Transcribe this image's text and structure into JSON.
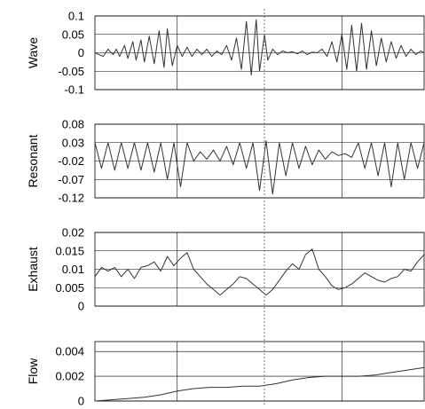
{
  "chart_data": [
    {
      "type": "line",
      "ylabel": "Wave",
      "ylim": [
        -0.1,
        0.1
      ],
      "yticks": [
        0.1,
        0.05,
        0,
        -0.05,
        -0.1
      ],
      "ytick_labels": [
        "0.1",
        "0.05",
        "0",
        "-0.05",
        "-0.1"
      ],
      "series": [
        {
          "x": [
            0,
            2.5,
            4,
            5.5,
            6.5,
            7.5,
            9,
            10,
            11.5,
            12.5,
            14,
            15,
            16.5,
            18,
            19.5,
            21,
            22,
            23.5,
            25,
            26.5,
            28,
            29.5,
            31,
            32.5,
            34,
            35.5,
            37,
            38.5,
            40,
            41.5,
            43,
            44.5,
            46,
            47.5,
            49,
            50,
            51.5,
            52.5,
            54,
            55.5,
            57,
            58.5,
            60,
            61.5,
            63,
            64.5,
            66,
            67.5,
            69,
            70.5,
            72,
            73.5,
            75,
            76.5,
            78,
            79.5,
            81,
            82.5,
            84,
            85.5,
            87,
            88.5,
            90,
            91.5,
            93,
            94.5,
            96,
            97.5,
            99,
            100
          ],
          "y": [
            0.0,
            -0.01,
            0.01,
            -0.005,
            0.01,
            -0.01,
            0.02,
            -0.015,
            0.03,
            -0.02,
            0.035,
            -0.025,
            0.045,
            -0.03,
            0.06,
            -0.04,
            0.065,
            -0.035,
            0.02,
            -0.01,
            0.015,
            -0.01,
            0.01,
            -0.005,
            0.01,
            -0.01,
            0.005,
            -0.005,
            0.02,
            -0.02,
            0.04,
            -0.045,
            0.085,
            -0.06,
            0.09,
            -0.05,
            0.05,
            -0.02,
            0.01,
            -0.005,
            0.005,
            0.0,
            0.003,
            -0.003,
            0.005,
            -0.005,
            0.002,
            0.0,
            0.01,
            -0.01,
            0.03,
            -0.025,
            0.05,
            -0.045,
            0.075,
            -0.05,
            0.08,
            -0.045,
            0.06,
            -0.035,
            0.04,
            -0.025,
            0.03,
            -0.015,
            0.02,
            -0.01,
            0.01,
            -0.005,
            0.005,
            0.0
          ]
        }
      ]
    },
    {
      "type": "line",
      "ylabel": "Resonant",
      "ylim": [
        -0.12,
        0.08
      ],
      "yticks": [
        0.08,
        0.03,
        -0.02,
        -0.07,
        -0.12
      ],
      "ytick_labels": [
        "0.08",
        "0.03",
        "-0.02",
        "-0.07",
        "-0.12"
      ],
      "series": [
        {
          "x": [
            0,
            2,
            4,
            6,
            8,
            10,
            12,
            14,
            16,
            18,
            20,
            22,
            24,
            26,
            28,
            30,
            32,
            34,
            36,
            38,
            40,
            42,
            44,
            46,
            48,
            50,
            52,
            54,
            56,
            58,
            60,
            62,
            64,
            66,
            68,
            70,
            72,
            74,
            76,
            78,
            80,
            82,
            84,
            86,
            88,
            90,
            92,
            94,
            96,
            98,
            100
          ],
          "y": [
            0.03,
            -0.04,
            0.03,
            -0.045,
            0.03,
            -0.04,
            0.03,
            -0.045,
            0.03,
            -0.05,
            0.03,
            -0.07,
            0.03,
            -0.09,
            0.03,
            -0.02,
            0.005,
            -0.015,
            0.01,
            -0.02,
            0.02,
            -0.03,
            0.03,
            -0.04,
            0.03,
            -0.1,
            0.035,
            -0.11,
            0.03,
            -0.06,
            0.03,
            -0.04,
            0.02,
            -0.03,
            0.01,
            -0.015,
            0.005,
            -0.005,
            0.0,
            -0.01,
            0.03,
            -0.04,
            0.03,
            -0.06,
            0.03,
            -0.09,
            0.03,
            -0.07,
            0.03,
            -0.04,
            0.03
          ]
        }
      ]
    },
    {
      "type": "line",
      "ylabel": "Exhaust",
      "ylim": [
        0,
        0.02
      ],
      "yticks": [
        0.02,
        0.015,
        0.01,
        0.005,
        0
      ],
      "ytick_labels": [
        "0.02",
        "0.015",
        "0.01",
        "0.005",
        "0"
      ],
      "series": [
        {
          "x": [
            0,
            2,
            4,
            6,
            8,
            10,
            12,
            14,
            16,
            18,
            20,
            22,
            24,
            26,
            28,
            30,
            32,
            34,
            36,
            38,
            40,
            42,
            44,
            46,
            48,
            50,
            52,
            54,
            56,
            58,
            60,
            62,
            64,
            66,
            68,
            70,
            72,
            74,
            76,
            78,
            80,
            82,
            84,
            86,
            88,
            90,
            92,
            94,
            96,
            98,
            100
          ],
          "y": [
            0.008,
            0.0105,
            0.0095,
            0.0105,
            0.008,
            0.01,
            0.0075,
            0.0105,
            0.011,
            0.012,
            0.0095,
            0.0135,
            0.011,
            0.013,
            0.0145,
            0.01,
            0.008,
            0.006,
            0.0045,
            0.003,
            0.0045,
            0.006,
            0.008,
            0.0075,
            0.006,
            0.0045,
            0.003,
            0.0045,
            0.007,
            0.0095,
            0.0115,
            0.01,
            0.014,
            0.0155,
            0.01,
            0.008,
            0.0055,
            0.0045,
            0.005,
            0.006,
            0.0075,
            0.009,
            0.008,
            0.007,
            0.0065,
            0.0075,
            0.008,
            0.01,
            0.0095,
            0.012,
            0.014
          ]
        }
      ]
    },
    {
      "type": "line",
      "ylabel": "Flow",
      "ylim": [
        0,
        0.0048
      ],
      "yticks": [
        0.004,
        0.002,
        0
      ],
      "ytick_labels": [
        "0.004",
        "0.002",
        "0"
      ],
      "series": [
        {
          "x": [
            0,
            5,
            10,
            15,
            20,
            25,
            30,
            35,
            40,
            45,
            50,
            55,
            60,
            65,
            70,
            75,
            80,
            85,
            90,
            95,
            100
          ],
          "y": [
            0.0,
            0.0001,
            0.0002,
            0.0003,
            0.0005,
            0.0008,
            0.001,
            0.0011,
            0.0011,
            0.0012,
            0.0012,
            0.0014,
            0.0017,
            0.0019,
            0.002,
            0.002,
            0.002,
            0.0021,
            0.0023,
            0.0025,
            0.0027
          ]
        }
      ]
    }
  ]
}
